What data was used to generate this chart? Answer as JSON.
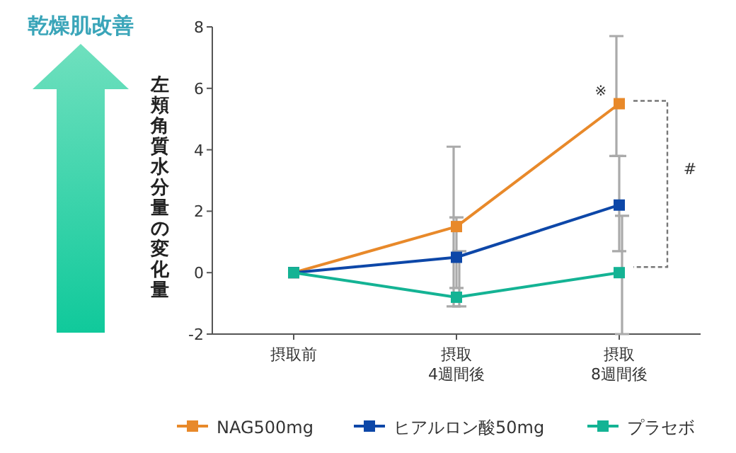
{
  "chart_data": {
    "type": "line",
    "title": "乾燥肌改善",
    "ylabel": "左頬角質水分量の変化量",
    "categories": [
      "摂取前",
      "摂取 4週間後",
      "摂取 8週間後"
    ],
    "series": [
      {
        "name": "NAG500mg",
        "color": "#e8892a",
        "values": [
          0,
          1.5,
          5.5
        ],
        "errors": [
          null,
          [
            -1.1,
            4.1
          ],
          [
            3.8,
            7.7
          ]
        ]
      },
      {
        "name": "ヒアルロン酸50mg",
        "color": "#0d47a8",
        "values": [
          0,
          0.5,
          2.2
        ],
        "errors": [
          null,
          [
            -0.5,
            1.8
          ],
          [
            0.7,
            3.8
          ]
        ]
      },
      {
        "name": "プラセボ",
        "color": "#14b394",
        "values": [
          0,
          -0.8,
          0
        ],
        "errors": [
          null,
          [
            -1.1,
            0.7
          ],
          [
            -2,
            1.85
          ]
        ]
      }
    ],
    "ylim": [
      -2,
      8
    ],
    "yticks": [
      -2,
      0,
      2,
      4,
      6,
      8
    ],
    "grid": false,
    "legend": "bottom",
    "marker": "square",
    "line_style": "solid",
    "annotations": [
      {
        "text": "※",
        "x": "摂取 8週間後",
        "y": 5.5
      },
      "#"
    ]
  }
}
